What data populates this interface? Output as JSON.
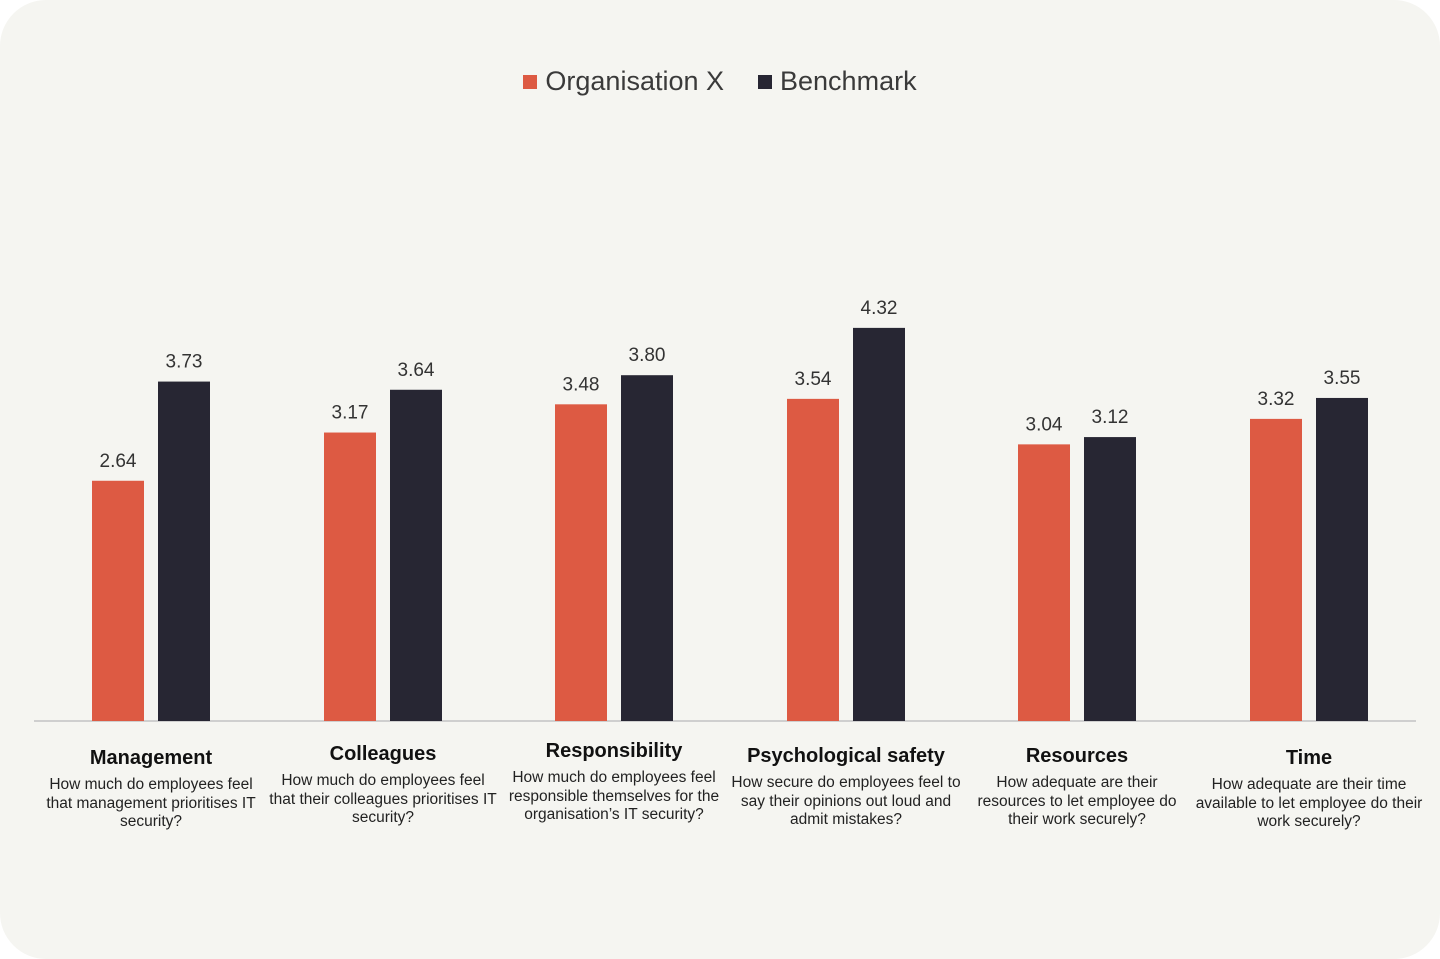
{
  "legend": {
    "org_label": "Organisation X",
    "bench_label": "Benchmark"
  },
  "colors": {
    "org": "#dd5a43",
    "bench": "#272633",
    "axis": "#cfcfcf",
    "background": "#f5f5f1"
  },
  "chart_data": {
    "type": "bar",
    "title": "",
    "xlabel": "",
    "ylabel": "",
    "ylim": [
      0,
      5
    ],
    "grid": false,
    "legend_position": "top-center",
    "categories": [
      "Management",
      "Colleagues",
      "Responsibility",
      "Psychological safety",
      "Resources",
      "Time"
    ],
    "category_descriptions": [
      "How much do employees feel that management prioritises IT security?",
      "How much do employees feel that their colleagues prioritises IT security?",
      "How much do employees feel responsible themselves for the organisation’s IT security?",
      "How secure do employees feel to say their opinions out loud and admit mistakes?",
      "How adequate are their resources to let employee do their work securely?",
      "How adequate are their time available to let employee do their work securely?"
    ],
    "series": [
      {
        "name": "Organisation X",
        "values": [
          2.64,
          3.17,
          3.48,
          3.54,
          3.04,
          3.32
        ],
        "labels": [
          "2.64",
          "3.17",
          "3.48",
          "3.54",
          "3.04",
          "3.32"
        ]
      },
      {
        "name": "Benchmark",
        "values": [
          3.73,
          3.64,
          3.8,
          4.32,
          3.12,
          3.55
        ],
        "labels": [
          "3.73",
          "3.64",
          "3.80",
          "4.32",
          "3.12",
          "3.55"
        ]
      }
    ]
  }
}
